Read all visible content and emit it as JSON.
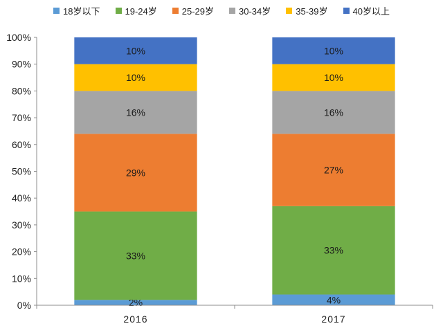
{
  "chart_data": {
    "type": "bar",
    "stacked": true,
    "categories": [
      "2016",
      "2017"
    ],
    "series": [
      {
        "name": "18岁以下",
        "color": "#5b9bd5",
        "values": [
          2,
          4
        ],
        "labels": [
          "2%",
          "4%"
        ]
      },
      {
        "name": "19-24岁",
        "color": "#70ad47",
        "values": [
          33,
          33
        ],
        "labels": [
          "33%",
          "33%"
        ]
      },
      {
        "name": "25-29岁",
        "color": "#ed7d31",
        "values": [
          29,
          27
        ],
        "labels": [
          "29%",
          "27%"
        ]
      },
      {
        "name": "30-34岁",
        "color": "#a5a5a5",
        "values": [
          16,
          16
        ],
        "labels": [
          "16%",
          "16%"
        ]
      },
      {
        "name": "35-39岁",
        "color": "#ffc000",
        "values": [
          10,
          10
        ],
        "labels": [
          "10%",
          "10%"
        ]
      },
      {
        "name": "40岁以上",
        "color": "#4472c4",
        "values": [
          10,
          10
        ],
        "labels": [
          "10%",
          "10%"
        ]
      }
    ],
    "ylim": [
      0,
      100
    ],
    "yticks": [
      "0%",
      "10%",
      "20%",
      "30%",
      "40%",
      "50%",
      "60%",
      "70%",
      "80%",
      "90%",
      "100%"
    ],
    "legend_position": "top",
    "grid": false
  }
}
